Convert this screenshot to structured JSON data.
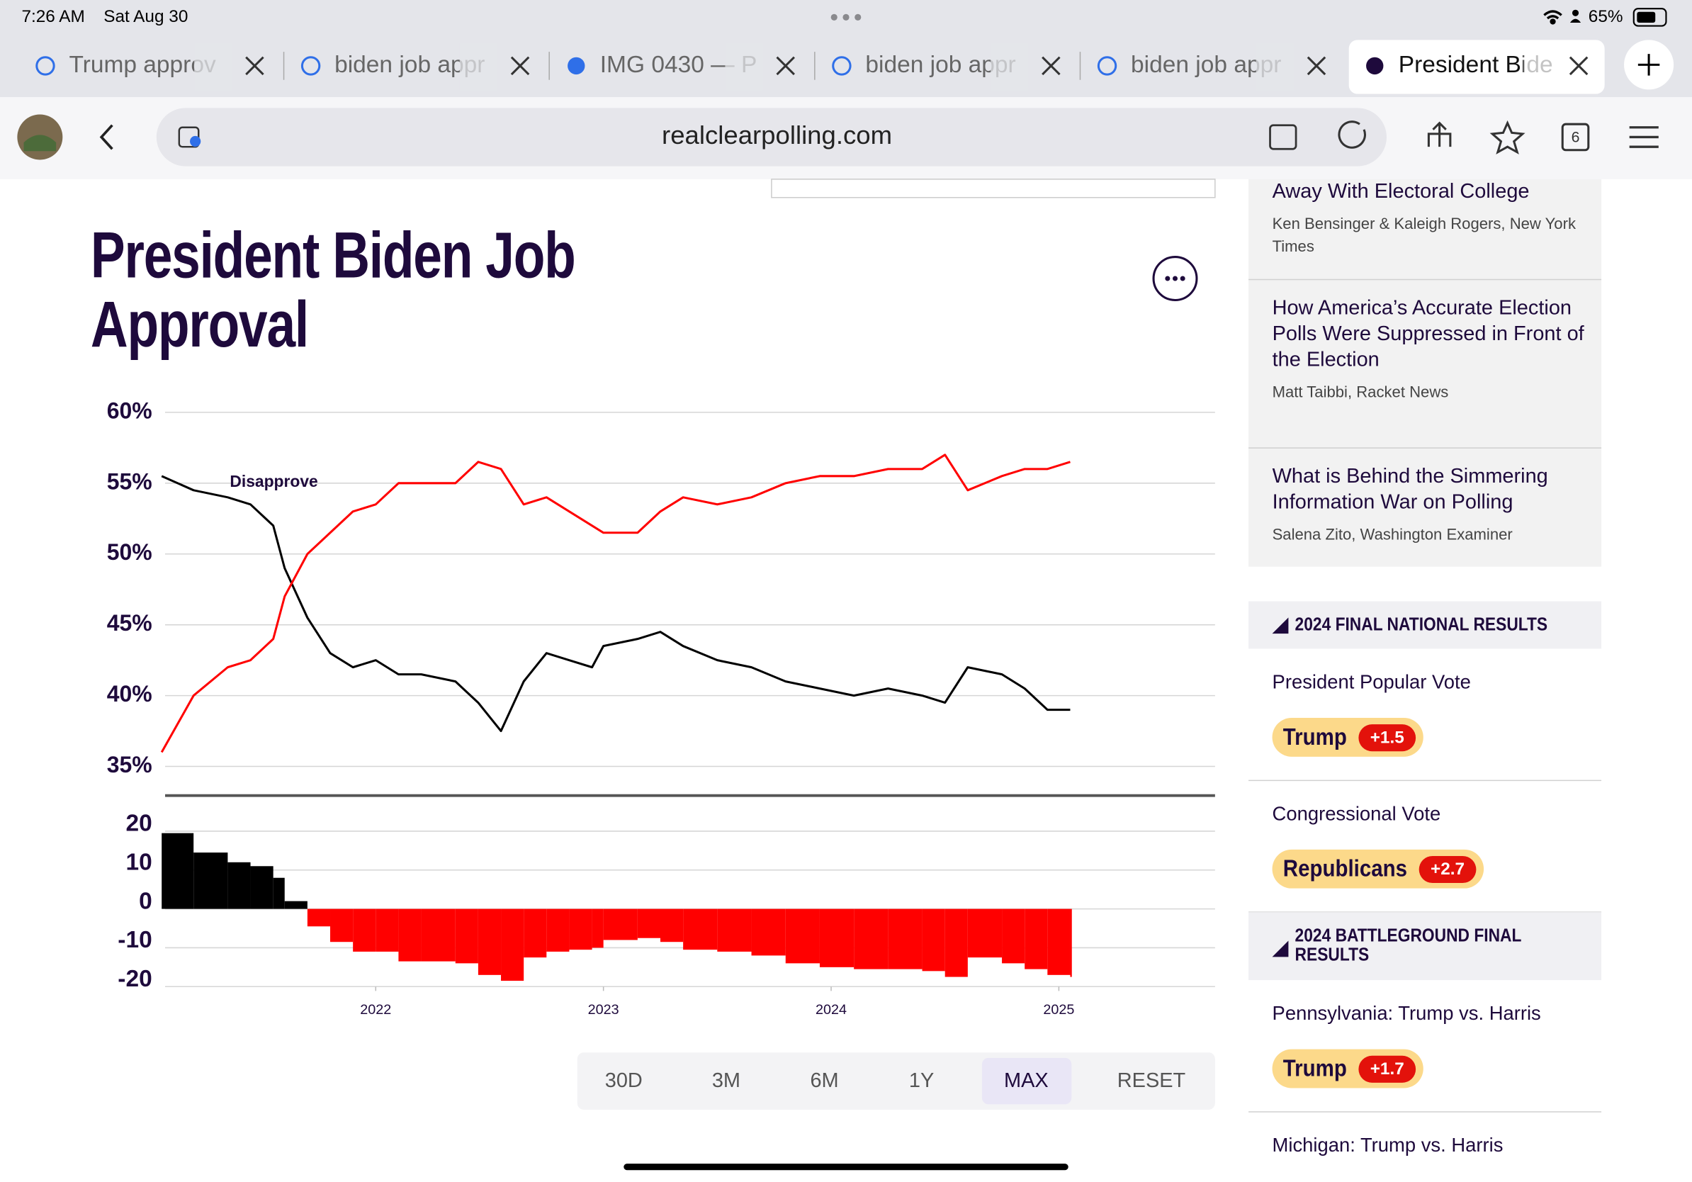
{
  "status_bar": {
    "time": "7:26 AM",
    "date": "Sat Aug 30",
    "battery": "65%"
  },
  "tabs": [
    "Trump approv",
    "biden job appr",
    "IMG 0430 — P",
    "biden job appr",
    "biden job appr",
    "President Bide"
  ],
  "active_tab": 5,
  "toolbar": {
    "url": "realclearpolling.com",
    "tab_count": 6
  },
  "chart_data": [
    {
      "type": "line",
      "title": "President Biden Job Approval",
      "annotation": "Disapprove",
      "x": [
        2021.06,
        2021.2,
        2021.35,
        2021.45,
        2021.55,
        2021.6,
        2021.7,
        2021.8,
        2021.9,
        2022.0,
        2022.1,
        2022.2,
        2022.35,
        2022.45,
        2022.55,
        2022.65,
        2022.75,
        2022.85,
        2022.95,
        2023.0,
        2023.15,
        2023.25,
        2023.35,
        2023.5,
        2023.65,
        2023.8,
        2023.95,
        2024.1,
        2024.25,
        2024.4,
        2024.5,
        2024.6,
        2024.75,
        2024.85,
        2024.95,
        2025.05
      ],
      "series": [
        {
          "color": "#000000",
          "values": [
            55.5,
            54.5,
            54,
            53.5,
            52,
            49,
            45.5,
            43,
            42,
            42.5,
            41.5,
            41.5,
            41,
            39.5,
            37.5,
            41,
            43,
            42.5,
            42,
            43.5,
            44,
            44.5,
            43.5,
            42.5,
            42,
            41,
            40.5,
            40,
            40.5,
            40,
            39.5,
            42,
            41.5,
            40.5,
            39,
            39
          ]
        },
        {
          "color": "#ff0000",
          "values": [
            36,
            40,
            42,
            42.5,
            44,
            47,
            50,
            51.5,
            53,
            53.5,
            55,
            55,
            55,
            56.5,
            56,
            53.5,
            54,
            53,
            52,
            51.5,
            51.5,
            53,
            54,
            53.5,
            54,
            55,
            55.5,
            55.5,
            56,
            56,
            57,
            54.5,
            55.5,
            56,
            56,
            56.5
          ]
        }
      ],
      "xlim": [
        2021.075,
        2025.686
      ],
      "ylim": [
        35,
        60
      ],
      "yticks": [
        {
          "value": 60,
          "label": "60%"
        },
        {
          "value": 55,
          "label": "55%"
        },
        {
          "value": 50,
          "label": "50%"
        },
        {
          "value": 45,
          "label": "45%"
        },
        {
          "value": 40,
          "label": "40%"
        },
        {
          "value": 35,
          "label": "35%"
        }
      ],
      "grid": true
    },
    {
      "type": "bar",
      "x": [
        2021.06,
        2021.2,
        2021.35,
        2021.45,
        2021.55,
        2021.6,
        2021.7,
        2021.8,
        2021.9,
        2022.0,
        2022.1,
        2022.2,
        2022.35,
        2022.45,
        2022.55,
        2022.65,
        2022.75,
        2022.85,
        2022.95,
        2023.0,
        2023.15,
        2023.25,
        2023.35,
        2023.5,
        2023.65,
        2023.8,
        2023.95,
        2024.1,
        2024.25,
        2024.4,
        2024.5,
        2024.6,
        2024.75,
        2024.85,
        2024.95,
        2025.05
      ],
      "values": [
        19.5,
        14.5,
        12,
        11,
        8,
        2,
        -4.5,
        -8.5,
        -11,
        -11,
        -13.5,
        -13.5,
        -14,
        -17,
        -18.5,
        -12.5,
        -11,
        -10.5,
        -10,
        -8,
        -7.5,
        -8.5,
        -10.5,
        -11,
        -12,
        -14,
        -15,
        -15.5,
        -15.5,
        -16,
        -17.5,
        -12.5,
        -14,
        -15.5,
        -17,
        -17.5
      ],
      "positive_color": "#000000",
      "negative_color": "#ff0000",
      "xlim": [
        2021.075,
        2025.686
      ],
      "ylim": [
        -20,
        20
      ],
      "xticks": [
        2022,
        2023,
        2024,
        2025
      ],
      "yticks": [
        20,
        10,
        0,
        -10,
        -20
      ],
      "grid": true
    }
  ],
  "range_buttons": [
    "30D",
    "3M",
    "6M",
    "1Y",
    "MAX",
    "RESET"
  ],
  "selected_range": 4,
  "sidebar": {
    "articles": [
      {
        "title": "Away With Electoral College",
        "byline": "Ken Bensinger & Kaleigh Rogers, New York Times"
      },
      {
        "title": "How America’s Accurate Election Polls Were Suppressed in Front of the Election",
        "byline": "Matt Taibbi, Racket News"
      },
      {
        "title": "What is Behind the Simmering Information War on Polling",
        "byline": "Salena Zito, Washington Examiner"
      }
    ],
    "sections": [
      {
        "heading": "2024 FINAL NATIONAL RESULTS",
        "races": [
          {
            "name": "President Popular Vote",
            "leader": "Trump",
            "margin": "+1.5"
          },
          {
            "name": "Congressional Vote",
            "leader": "Republicans",
            "margin": "+2.7"
          }
        ]
      },
      {
        "heading": "2024 BATTLEGROUND FINAL RESULTS",
        "races": [
          {
            "name": "Pennsylvania: Trump vs. Harris",
            "leader": "Trump",
            "margin": "+1.7"
          },
          {
            "name": "Michigan: Trump vs. Harris"
          }
        ]
      }
    ]
  }
}
